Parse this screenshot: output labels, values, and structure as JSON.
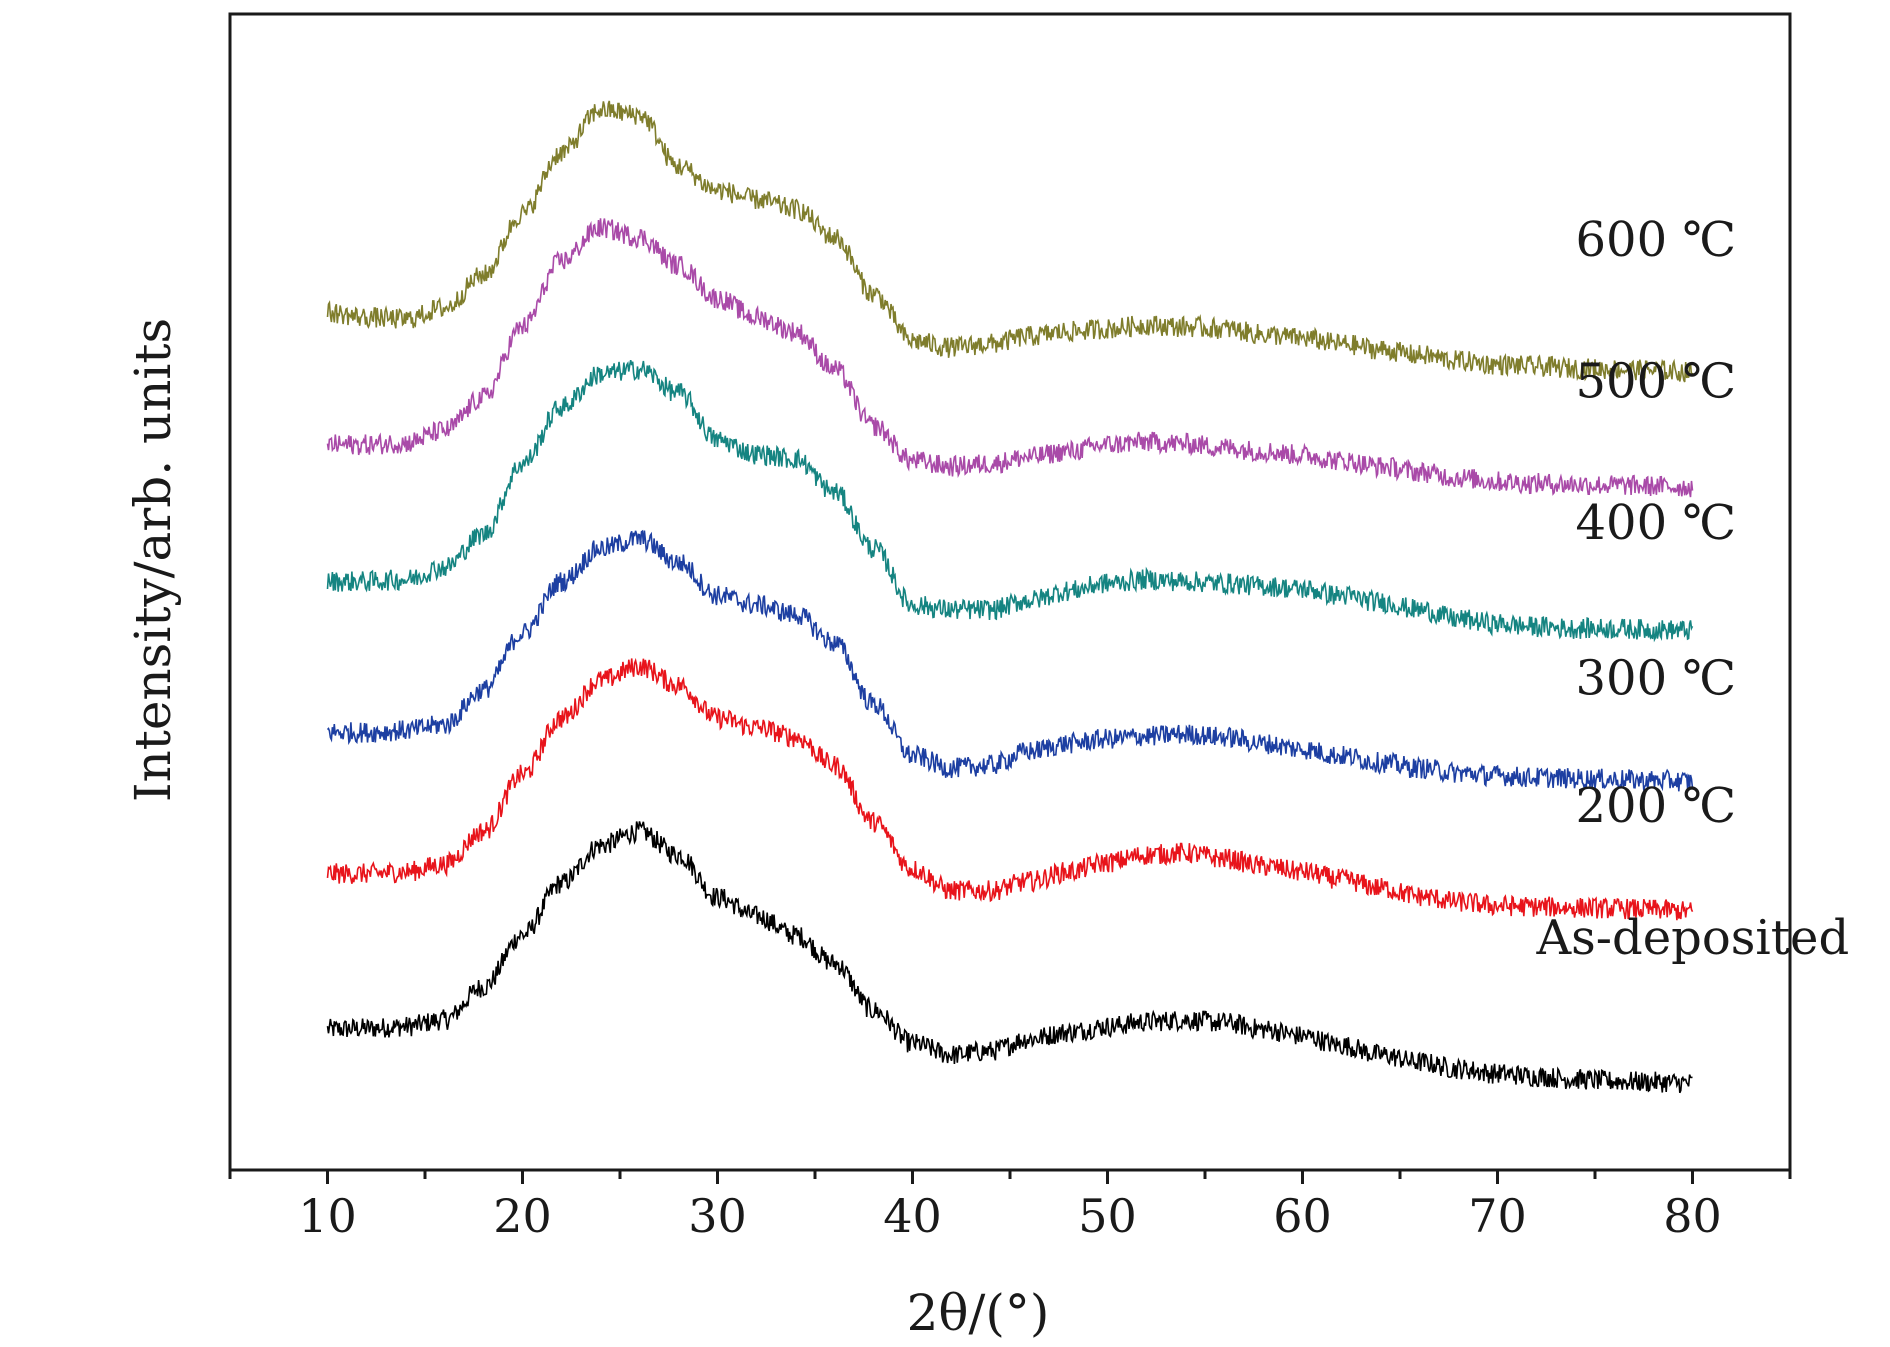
{
  "chart_data": {
    "type": "line",
    "title": "",
    "xlabel": "2θ/(°)",
    "ylabel": "Intensity/arb. units",
    "xlim": [
      5,
      85
    ],
    "xticks": [
      10,
      20,
      30,
      40,
      50,
      60,
      70,
      80
    ],
    "ylim": [
      0,
      10
    ],
    "yticks": [],
    "grid": false,
    "legend": "none",
    "series": [
      {
        "name": "As-deposited",
        "color": "#000000",
        "x": [
          10,
          12,
          14,
          16,
          18,
          20,
          22,
          24,
          26,
          28,
          30,
          32,
          34,
          36,
          38,
          40,
          42,
          44,
          46,
          48,
          50,
          52,
          54,
          56,
          58,
          60,
          62,
          64,
          66,
          68,
          70,
          72,
          74,
          76,
          78,
          80
        ],
        "y": [
          0.75,
          0.76,
          0.78,
          0.85,
          1.2,
          1.75,
          2.3,
          2.7,
          2.85,
          2.6,
          2.15,
          1.95,
          1.75,
          1.45,
          0.95,
          0.6,
          0.48,
          0.52,
          0.65,
          0.72,
          0.78,
          0.83,
          0.85,
          0.82,
          0.75,
          0.68,
          0.58,
          0.48,
          0.4,
          0.33,
          0.28,
          0.25,
          0.22,
          0.2,
          0.19,
          0.18
        ]
      },
      {
        "name": "200 ℃",
        "color": "#e8141b",
        "x": [
          10,
          12,
          14,
          16,
          18,
          20,
          22,
          24,
          26,
          28,
          30,
          32,
          34,
          36,
          38,
          40,
          42,
          44,
          46,
          48,
          50,
          52,
          54,
          56,
          58,
          60,
          62,
          64,
          66,
          68,
          70,
          72,
          74,
          76,
          78,
          80
        ],
        "y": [
          2.4,
          2.4,
          2.42,
          2.5,
          2.85,
          3.45,
          4.05,
          4.45,
          4.6,
          4.4,
          4.05,
          3.95,
          3.85,
          3.55,
          2.95,
          2.45,
          2.22,
          2.22,
          2.32,
          2.42,
          2.52,
          2.6,
          2.62,
          2.56,
          2.48,
          2.42,
          2.34,
          2.25,
          2.16,
          2.1,
          2.06,
          2.05,
          2.04,
          2.03,
          2.02,
          2.0
        ]
      },
      {
        "name": "300 ℃",
        "color": "#1d3fa2",
        "x": [
          10,
          12,
          14,
          16,
          18,
          20,
          22,
          24,
          26,
          28,
          30,
          32,
          34,
          36,
          38,
          40,
          42,
          44,
          46,
          48,
          50,
          52,
          54,
          56,
          58,
          60,
          62,
          64,
          66,
          68,
          70,
          72,
          74,
          76,
          78,
          80
        ],
        "y": [
          3.9,
          3.9,
          3.92,
          3.98,
          4.35,
          4.95,
          5.5,
          5.85,
          5.95,
          5.7,
          5.35,
          5.25,
          5.15,
          4.85,
          4.2,
          3.65,
          3.52,
          3.55,
          3.7,
          3.78,
          3.83,
          3.86,
          3.88,
          3.85,
          3.78,
          3.72,
          3.65,
          3.58,
          3.52,
          3.47,
          3.44,
          3.42,
          3.41,
          3.4,
          3.39,
          3.38
        ]
      },
      {
        "name": "400 ℃",
        "color": "#158481",
        "x": [
          10,
          12,
          14,
          16,
          18,
          20,
          22,
          24,
          26,
          28,
          30,
          32,
          34,
          36,
          38,
          40,
          42,
          44,
          46,
          48,
          50,
          52,
          54,
          56,
          58,
          60,
          62,
          64,
          66,
          68,
          70,
          72,
          74,
          76,
          78,
          80
        ],
        "y": [
          5.5,
          5.5,
          5.52,
          5.65,
          6.0,
          6.75,
          7.35,
          7.7,
          7.75,
          7.5,
          7.0,
          6.85,
          6.8,
          6.45,
          5.85,
          5.25,
          5.2,
          5.2,
          5.3,
          5.4,
          5.48,
          5.52,
          5.5,
          5.48,
          5.45,
          5.42,
          5.35,
          5.28,
          5.2,
          5.1,
          5.05,
          5.02,
          5.0,
          5.0,
          4.99,
          4.98
        ]
      },
      {
        "name": "500 ℃",
        "color": "#a94aa8",
        "x": [
          10,
          12,
          14,
          16,
          18,
          20,
          22,
          24,
          26,
          28,
          30,
          32,
          34,
          36,
          38,
          40,
          42,
          44,
          46,
          48,
          50,
          52,
          54,
          56,
          58,
          60,
          62,
          64,
          66,
          68,
          70,
          72,
          74,
          76,
          78,
          80
        ],
        "y": [
          6.95,
          6.95,
          6.97,
          7.1,
          7.45,
          8.2,
          8.9,
          9.25,
          9.15,
          8.85,
          8.5,
          8.3,
          8.15,
          7.75,
          7.15,
          6.78,
          6.72,
          6.75,
          6.82,
          6.88,
          6.95,
          6.98,
          6.96,
          6.92,
          6.88,
          6.84,
          6.78,
          6.72,
          6.66,
          6.6,
          6.56,
          6.54,
          6.53,
          6.52,
          6.51,
          6.5
        ]
      },
      {
        "name": "600 ℃",
        "color": "#7f7d2c",
        "x": [
          10,
          12,
          14,
          16,
          18,
          20,
          22,
          24,
          26,
          28,
          30,
          32,
          34,
          36,
          38,
          40,
          42,
          44,
          46,
          48,
          50,
          52,
          54,
          56,
          58,
          60,
          62,
          64,
          66,
          68,
          70,
          72,
          74,
          76,
          78,
          80
        ],
        "y": [
          8.35,
          8.3,
          8.28,
          8.4,
          8.75,
          9.4,
          10.05,
          10.5,
          10.45,
          9.9,
          9.65,
          9.55,
          9.45,
          9.15,
          8.55,
          8.05,
          7.98,
          8.02,
          8.1,
          8.15,
          8.18,
          8.22,
          8.2,
          8.18,
          8.12,
          8.08,
          8.02,
          7.96,
          7.9,
          7.84,
          7.8,
          7.78,
          7.76,
          7.75,
          7.74,
          7.72
        ]
      }
    ],
    "labels": [
      {
        "text": "As-deposited",
        "x": 72,
        "y": 1.55
      },
      {
        "text": "200 ℃",
        "x": 74,
        "y": 2.95
      },
      {
        "text": "300 ℃",
        "x": 74,
        "y": 4.3
      },
      {
        "text": "400 ℃",
        "x": 74,
        "y": 5.95
      },
      {
        "text": "500 ℃",
        "x": 74,
        "y": 7.45
      },
      {
        "text": "600 ℃",
        "x": 74,
        "y": 8.95
      }
    ]
  }
}
